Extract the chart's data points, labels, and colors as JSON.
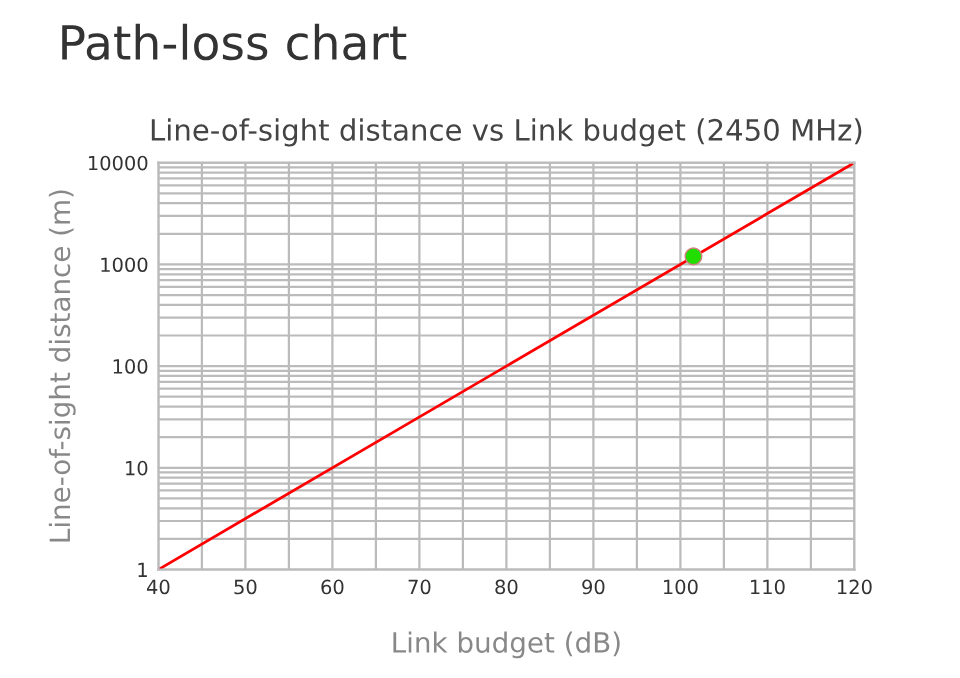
{
  "chart_data": {
    "type": "line",
    "title": "Path-loss chart",
    "subtitle": "Line-of-sight distance vs Link budget (2450 MHz)",
    "xlabel": "Link budget (dB)",
    "ylabel": "Line-of-sight distance (m)",
    "series": [
      {
        "color": "#ff0000",
        "x": [
          40,
          120
        ],
        "values": [
          1,
          10000
        ],
        "marker": "none"
      },
      {
        "type": "scatter",
        "color": "#22dd00",
        "x": [
          101.5
        ],
        "values": [
          1200
        ],
        "marker": "circle"
      }
    ],
    "log": "y",
    "xlim": [
      40,
      120
    ],
    "ylim": [
      1,
      10000
    ],
    "xticks": [
      40,
      {
        "value": 45,
        "label": null
      },
      50,
      {
        "value": 55,
        "label": null
      },
      60,
      {
        "value": 65,
        "label": null
      },
      70,
      {
        "value": 75,
        "label": null
      },
      80,
      {
        "value": 85,
        "label": null
      },
      90,
      {
        "value": 95,
        "label": null
      },
      100,
      {
        "value": 105,
        "label": null
      },
      110,
      {
        "value": 115,
        "label": null
      },
      120
    ],
    "yticks": [
      1,
      {
        "value": 2,
        "label": null
      },
      {
        "value": 3,
        "label": null
      },
      {
        "value": 4,
        "label": null
      },
      {
        "value": 5,
        "label": null
      },
      {
        "value": 6,
        "label": null
      },
      {
        "value": 7,
        "label": null
      },
      {
        "value": 8,
        "label": null
      },
      {
        "value": 9,
        "label": null
      },
      10,
      {
        "value": 20,
        "label": null
      },
      {
        "value": 30,
        "label": null
      },
      {
        "value": 40,
        "label": null
      },
      {
        "value": 50,
        "label": null
      },
      {
        "value": 60,
        "label": null
      },
      {
        "value": 70,
        "label": null
      },
      {
        "value": 80,
        "label": null
      },
      {
        "value": 90,
        "label": null
      },
      100,
      {
        "value": 200,
        "label": null
      },
      {
        "value": 300,
        "label": null
      },
      {
        "value": 400,
        "label": null
      },
      {
        "value": 500,
        "label": null
      },
      {
        "value": 600,
        "label": null
      },
      {
        "value": 700,
        "label": null
      },
      {
        "value": 800,
        "label": null
      },
      {
        "value": 900,
        "label": null
      },
      1000,
      {
        "value": 2000,
        "label": null
      },
      {
        "value": 3000,
        "label": null
      },
      {
        "value": 4000,
        "label": null
      },
      {
        "value": 5000,
        "label": null
      },
      {
        "value": 6000,
        "label": null
      },
      {
        "value": 7000,
        "label": null
      },
      {
        "value": 8000,
        "label": null
      },
      {
        "value": 9000,
        "label": null
      },
      10000
    ],
    "grid": true,
    "legend": false
  }
}
